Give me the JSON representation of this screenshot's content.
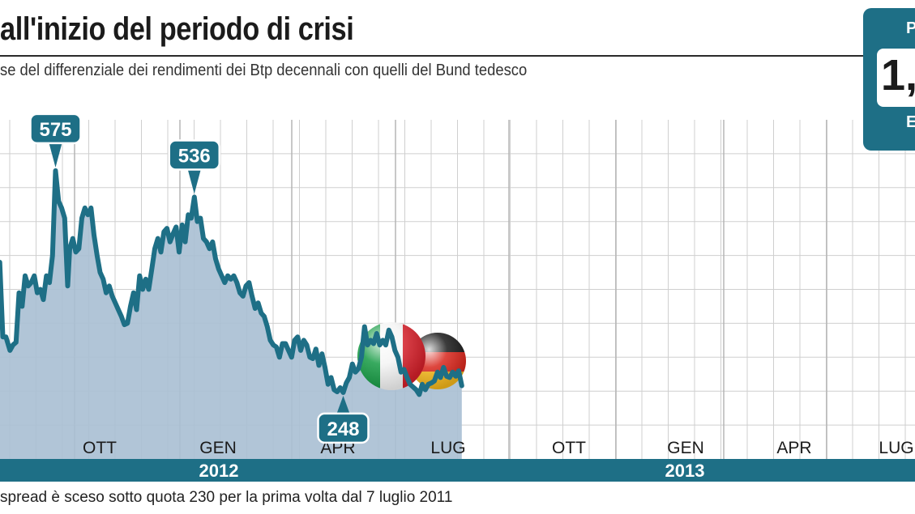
{
  "title": "all'inizio del periodo di crisi",
  "subtitle": "se del differenziale dei rendimenti dei Btp decennali con quelli del Bund tedesco",
  "badge": {
    "top": "P",
    "value": "1,",
    "bottom": "E"
  },
  "footer": "spread è sceso sotto quota 230 per la prima volta dal 7 luglio 2011",
  "colors": {
    "accent": "#1e6f86",
    "area": "#a9bfd3",
    "grid": "#cfcfcf"
  },
  "flags": [
    "italy-flag",
    "germany-flag"
  ],
  "chart_data": {
    "type": "area",
    "title": "",
    "xlabel": "",
    "ylabel": "",
    "x_tick_labels": [
      "OTT",
      "GEN",
      "APR",
      "LUG",
      "OTT",
      "GEN",
      "APR",
      "LUG"
    ],
    "year_labels": [
      "2012",
      "2013"
    ],
    "ylim": [
      150,
      650
    ],
    "grid": true,
    "series": [
      {
        "values": [
          [
            0,
            300
          ],
          [
            3,
            440
          ],
          [
            6,
            330
          ],
          [
            9,
            330
          ],
          [
            13,
            310
          ],
          [
            16,
            318
          ],
          [
            19,
            322
          ],
          [
            22,
            395
          ],
          [
            25,
            375
          ],
          [
            28,
            420
          ],
          [
            31,
            405
          ],
          [
            34,
            410
          ],
          [
            37,
            420
          ],
          [
            40,
            395
          ],
          [
            43,
            400
          ],
          [
            46,
            385
          ],
          [
            49,
            420
          ],
          [
            52,
            410
          ],
          [
            55,
            450
          ],
          [
            58,
            575
          ],
          [
            61,
            530
          ],
          [
            64,
            520
          ],
          [
            67,
            505
          ],
          [
            70,
            405
          ],
          [
            72,
            460
          ],
          [
            75,
            475
          ],
          [
            78,
            455
          ],
          [
            81,
            460
          ],
          [
            84,
            505
          ],
          [
            87,
            520
          ],
          [
            90,
            510
          ],
          [
            93,
            520
          ],
          [
            96,
            480
          ],
          [
            99,
            450
          ],
          [
            102,
            425
          ],
          [
            105,
            415
          ],
          [
            108,
            395
          ],
          [
            111,
            405
          ],
          [
            114,
            390
          ],
          [
            117,
            380
          ],
          [
            120,
            370
          ],
          [
            123,
            360
          ],
          [
            126,
            348
          ],
          [
            129,
            350
          ],
          [
            132,
            375
          ],
          [
            135,
            395
          ],
          [
            138,
            370
          ],
          [
            141,
            420
          ],
          [
            144,
            400
          ],
          [
            147,
            415
          ],
          [
            150,
            400
          ],
          [
            153,
            430
          ],
          [
            156,
            460
          ],
          [
            159,
            475
          ],
          [
            162,
            455
          ],
          [
            165,
            485
          ],
          [
            168,
            490
          ],
          [
            171,
            470
          ],
          [
            174,
            482
          ],
          [
            177,
            492
          ],
          [
            180,
            455
          ],
          [
            183,
            495
          ],
          [
            186,
            470
          ],
          [
            189,
            510
          ],
          [
            192,
            505
          ],
          [
            195,
            536
          ],
          [
            198,
            500
          ],
          [
            201,
            505
          ],
          [
            204,
            475
          ],
          [
            207,
            470
          ],
          [
            210,
            460
          ],
          [
            213,
            470
          ],
          [
            216,
            445
          ],
          [
            219,
            430
          ],
          [
            222,
            420
          ],
          [
            225,
            410
          ],
          [
            228,
            420
          ],
          [
            231,
            415
          ],
          [
            234,
            420
          ],
          [
            237,
            410
          ],
          [
            240,
            395
          ],
          [
            243,
            390
          ],
          [
            246,
            405
          ],
          [
            249,
            410
          ],
          [
            252,
            390
          ],
          [
            255,
            372
          ],
          [
            258,
            380
          ],
          [
            261,
            365
          ],
          [
            264,
            360
          ],
          [
            267,
            345
          ],
          [
            270,
            325
          ],
          [
            273,
            318
          ],
          [
            276,
            315
          ],
          [
            279,
            300
          ],
          [
            282,
            320
          ],
          [
            285,
            320
          ],
          [
            288,
            310
          ],
          [
            291,
            300
          ],
          [
            294,
            325
          ],
          [
            297,
            330
          ],
          [
            300,
            310
          ],
          [
            303,
            325
          ],
          [
            306,
            318
          ],
          [
            309,
            300
          ],
          [
            312,
            298
          ],
          [
            315,
            312
          ],
          [
            318,
            288
          ],
          [
            321,
            305
          ],
          [
            324,
            285
          ],
          [
            327,
            260
          ],
          [
            330,
            270
          ],
          [
            333,
            252
          ],
          [
            336,
            249
          ],
          [
            339,
            255
          ],
          [
            342,
            248
          ],
          [
            345,
            262
          ],
          [
            348,
            270
          ],
          [
            351,
            290
          ],
          [
            354,
            278
          ],
          [
            357,
            283
          ],
          [
            360,
            300
          ],
          [
            363,
            345
          ],
          [
            366,
            318
          ],
          [
            369,
            325
          ],
          [
            372,
            320
          ],
          [
            375,
            335
          ],
          [
            378,
            318
          ],
          [
            381,
            325
          ],
          [
            384,
            318
          ],
          [
            387,
            340
          ],
          [
            390,
            330
          ],
          [
            393,
            310
          ],
          [
            396,
            300
          ],
          [
            399,
            278
          ],
          [
            402,
            282
          ],
          [
            405,
            270
          ],
          [
            408,
            260
          ],
          [
            411,
            256
          ],
          [
            414,
            252
          ],
          [
            417,
            245
          ],
          [
            420,
            260
          ],
          [
            423,
            252
          ],
          [
            426,
            260
          ],
          [
            429,
            262
          ],
          [
            432,
            265
          ],
          [
            435,
            278
          ],
          [
            438,
            270
          ],
          [
            441,
            285
          ],
          [
            444,
            272
          ],
          [
            447,
            270
          ],
          [
            450,
            278
          ],
          [
            453,
            272
          ],
          [
            456,
            280
          ],
          [
            459,
            258
          ]
        ]
      }
    ],
    "annotations": [
      {
        "label": "575",
        "x": 58,
        "y": 575
      },
      {
        "label": "536",
        "x": 195,
        "y": 536
      },
      {
        "label": "248",
        "x": 342,
        "y": 248
      }
    ]
  }
}
